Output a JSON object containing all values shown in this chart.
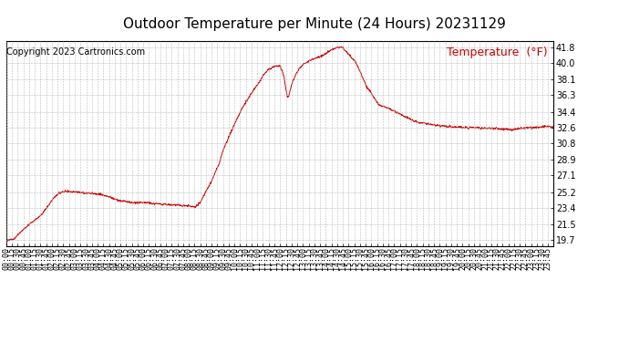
{
  "title": "Outdoor Temperature per Minute (24 Hours) 20231129",
  "copyright_text": "Copyright 2023 Cartronics.com",
  "legend_label": "Temperature  (°F)",
  "line_color": "#cc0000",
  "background_color": "#ffffff",
  "grid_color": "#aaaaaa",
  "yticks": [
    19.7,
    21.5,
    23.4,
    25.2,
    27.1,
    28.9,
    30.8,
    32.6,
    34.4,
    36.3,
    38.1,
    40.0,
    41.8
  ],
  "ylim": [
    19.0,
    42.5
  ],
  "title_fontsize": 11,
  "axis_fontsize": 7,
  "copyright_fontsize": 7,
  "legend_fontsize": 9,
  "xtick_interval_minutes": 15,
  "total_minutes": 1440,
  "keypoints": [
    [
      0,
      19.7
    ],
    [
      20,
      19.8
    ],
    [
      35,
      20.5
    ],
    [
      60,
      21.5
    ],
    [
      90,
      22.5
    ],
    [
      130,
      24.8
    ],
    [
      145,
      25.2
    ],
    [
      155,
      25.3
    ],
    [
      180,
      25.2
    ],
    [
      210,
      25.1
    ],
    [
      240,
      25.0
    ],
    [
      260,
      24.8
    ],
    [
      280,
      24.5
    ],
    [
      300,
      24.2
    ],
    [
      330,
      24.0
    ],
    [
      360,
      24.0
    ],
    [
      390,
      23.9
    ],
    [
      420,
      23.8
    ],
    [
      450,
      23.7
    ],
    [
      480,
      23.6
    ],
    [
      495,
      23.5
    ],
    [
      510,
      24.0
    ],
    [
      540,
      26.5
    ],
    [
      560,
      28.5
    ],
    [
      570,
      30.0
    ],
    [
      585,
      31.5
    ],
    [
      600,
      33.0
    ],
    [
      620,
      34.8
    ],
    [
      630,
      35.5
    ],
    [
      640,
      36.2
    ],
    [
      660,
      37.5
    ],
    [
      675,
      38.5
    ],
    [
      690,
      39.3
    ],
    [
      705,
      39.6
    ],
    [
      720,
      39.7
    ],
    [
      730,
      38.5
    ],
    [
      735,
      37.0
    ],
    [
      740,
      36.0
    ],
    [
      745,
      36.5
    ],
    [
      750,
      37.5
    ],
    [
      765,
      39.0
    ],
    [
      780,
      39.8
    ],
    [
      795,
      40.2
    ],
    [
      810,
      40.5
    ],
    [
      840,
      41.0
    ],
    [
      855,
      41.5
    ],
    [
      870,
      41.8
    ],
    [
      885,
      41.8
    ],
    [
      890,
      41.5
    ],
    [
      900,
      41.0
    ],
    [
      920,
      40.0
    ],
    [
      930,
      39.0
    ],
    [
      945,
      37.5
    ],
    [
      960,
      36.5
    ],
    [
      975,
      35.5
    ],
    [
      980,
      35.2
    ],
    [
      990,
      35.0
    ],
    [
      1005,
      34.8
    ],
    [
      1020,
      34.5
    ],
    [
      1050,
      33.8
    ],
    [
      1080,
      33.2
    ],
    [
      1110,
      33.0
    ],
    [
      1140,
      32.8
    ],
    [
      1170,
      32.7
    ],
    [
      1200,
      32.6
    ],
    [
      1230,
      32.6
    ],
    [
      1260,
      32.5
    ],
    [
      1290,
      32.5
    ],
    [
      1320,
      32.4
    ],
    [
      1335,
      32.3
    ],
    [
      1340,
      32.4
    ],
    [
      1350,
      32.5
    ],
    [
      1380,
      32.6
    ],
    [
      1400,
      32.6
    ],
    [
      1415,
      32.7
    ],
    [
      1439,
      32.7
    ]
  ]
}
